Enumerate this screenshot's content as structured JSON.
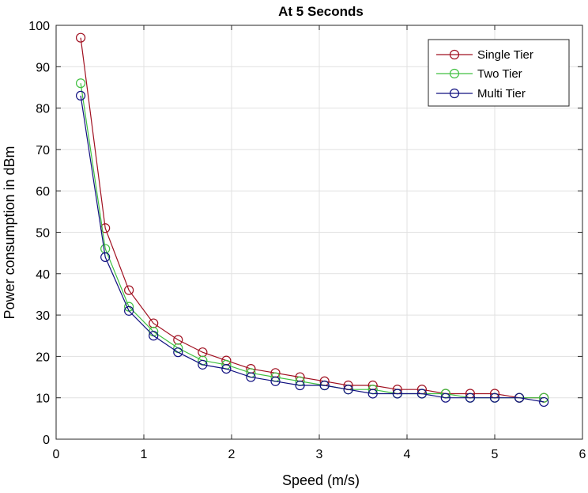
{
  "chart_data": {
    "type": "line",
    "title": "At 5 Seconds",
    "xlabel": "Speed (m/s)",
    "ylabel": "Power consumption in dBm",
    "xlim": [
      0,
      6
    ],
    "ylim": [
      0,
      100
    ],
    "xticks": [
      "0",
      "1",
      "2",
      "3",
      "4",
      "5",
      "6"
    ],
    "yticks": [
      "0",
      "10",
      "20",
      "30",
      "40",
      "50",
      "60",
      "70",
      "80",
      "90",
      "100"
    ],
    "grid": true,
    "legend_position": "top-right",
    "x": [
      0.28,
      0.56,
      0.83,
      1.11,
      1.39,
      1.67,
      1.94,
      2.22,
      2.5,
      2.78,
      3.06,
      3.33,
      3.61,
      3.89,
      4.17,
      4.44,
      4.72,
      5.0,
      5.28,
      5.56
    ],
    "series": [
      {
        "name": "Single Tier",
        "color": "#a01020",
        "values": [
          97,
          51,
          36,
          28,
          24,
          21,
          19,
          17,
          16,
          15,
          14,
          13,
          13,
          12,
          12,
          11,
          11,
          11,
          10,
          10
        ]
      },
      {
        "name": "Two Tier",
        "color": "#40c040",
        "values": [
          86,
          46,
          32,
          26,
          22,
          19,
          18,
          16,
          15,
          14,
          13,
          12,
          12,
          11,
          11,
          11,
          10,
          10,
          10,
          10
        ]
      },
      {
        "name": "Multi Tier",
        "color": "#101080",
        "values": [
          83,
          44,
          31,
          25,
          21,
          18,
          17,
          15,
          14,
          13,
          13,
          12,
          11,
          11,
          11,
          10,
          10,
          10,
          10,
          9
        ]
      }
    ]
  }
}
